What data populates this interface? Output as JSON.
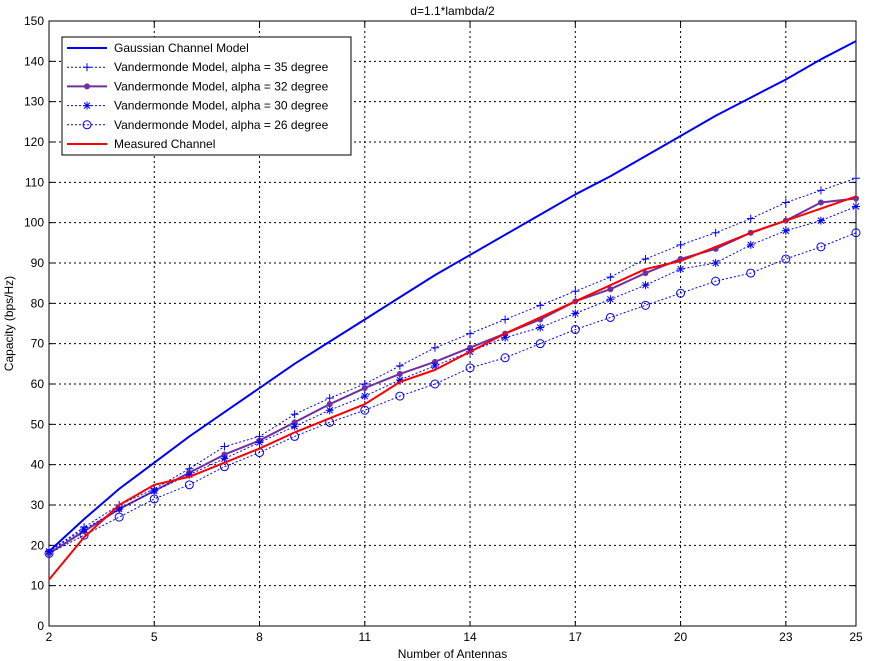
{
  "chart_data": {
    "type": "line",
    "title": "d=1.1*lambda/2",
    "xlabel": "Number of Antennas",
    "ylabel": "Capacity (bps/Hz)",
    "xlim": [
      2,
      25
    ],
    "ylim": [
      0,
      150
    ],
    "xticks": [
      2,
      5,
      8,
      11,
      14,
      17,
      20,
      23,
      25
    ],
    "yticks": [
      0,
      10,
      20,
      30,
      40,
      50,
      60,
      70,
      80,
      90,
      100,
      110,
      120,
      130,
      140,
      150
    ],
    "grid": true,
    "legend_position": "top-left",
    "x": [
      2,
      3,
      4,
      5,
      6,
      7,
      8,
      9,
      10,
      11,
      12,
      13,
      14,
      15,
      16,
      17,
      18,
      19,
      20,
      21,
      22,
      23,
      24,
      25
    ],
    "series": [
      {
        "name": "Gaussian Channel Model",
        "color": "#0000ff",
        "line": "solid",
        "marker": "none",
        "width": 2,
        "values": [
          18.5,
          26.5,
          34,
          40.5,
          47,
          53,
          59,
          65,
          70.5,
          76,
          81.5,
          87,
          92,
          97,
          102,
          107,
          111.5,
          116.5,
          121.5,
          126.5,
          131,
          135.5,
          140.5,
          145
        ]
      },
      {
        "name": "Vandermonde Model, alpha = 35 degree",
        "color": "#0000ff",
        "line": "dotted",
        "marker": "plus",
        "width": 1,
        "values": [
          18.5,
          24.5,
          30,
          34,
          39,
          44.5,
          47,
          52.5,
          56.5,
          60,
          64.5,
          69,
          72.5,
          76,
          79.5,
          83,
          86.5,
          91,
          94.5,
          97.5,
          101,
          105,
          108,
          111
        ]
      },
      {
        "name": "Vandermonde Model, alpha = 32 degree",
        "color": "#7030a0",
        "line": "solid",
        "marker": "dot",
        "width": 2,
        "values": [
          18,
          23.5,
          29,
          33.5,
          38,
          42.5,
          46,
          50.5,
          55,
          59,
          62.5,
          65.5,
          69,
          72.5,
          76,
          80.5,
          83.5,
          87.5,
          91,
          93.5,
          97.5,
          100.5,
          105,
          106
        ]
      },
      {
        "name": "Vandermonde Model, alpha = 30 degree",
        "color": "#0000ff",
        "line": "dotted",
        "marker": "star",
        "width": 1,
        "values": [
          18.5,
          24,
          29,
          33.5,
          37.5,
          41.5,
          45.5,
          49.5,
          53.5,
          57,
          61,
          64.5,
          68,
          71.5,
          74,
          77.5,
          81,
          84.5,
          88.5,
          90,
          94.5,
          98,
          100.5,
          104
        ]
      },
      {
        "name": "Vandermonde Model, alpha = 26 degree",
        "color": "#0000ff",
        "line": "dotted",
        "marker": "circle",
        "width": 1,
        "values": [
          18,
          22.5,
          27,
          31.5,
          35,
          39.5,
          43,
          47,
          50.5,
          53.5,
          57,
          60,
          64,
          66.5,
          70,
          73.5,
          76.5,
          79.5,
          82.5,
          85.5,
          87.5,
          91,
          94,
          97.5
        ]
      },
      {
        "name": "Measured Channel",
        "color": "#ff0000",
        "line": "solid",
        "marker": "none",
        "width": 2,
        "values": [
          11.5,
          22,
          30,
          35,
          37,
          40.5,
          44,
          48,
          51.5,
          55,
          60.5,
          63.5,
          68,
          72.5,
          76.5,
          80.5,
          84.5,
          88.5,
          90.5,
          94,
          97.5,
          100.5,
          103.5,
          106.5
        ]
      }
    ]
  }
}
